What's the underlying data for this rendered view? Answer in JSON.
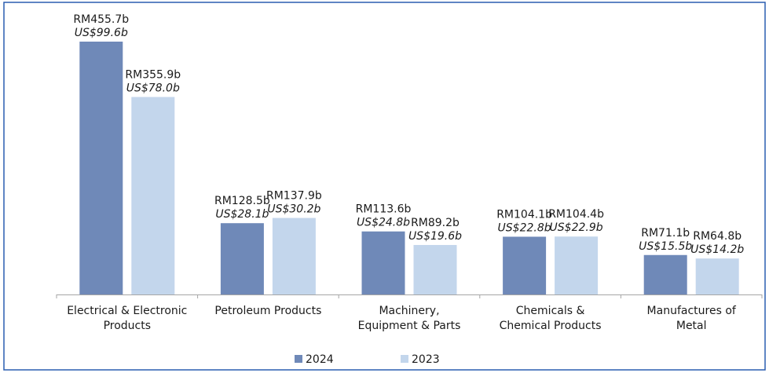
{
  "chart_data": {
    "type": "bar",
    "categories": [
      [
        "Electrical & Electronic",
        "Products"
      ],
      [
        "Petroleum Products"
      ],
      [
        "Machinery,",
        "Equipment & Parts"
      ],
      [
        "Chemicals &",
        "Chemical Products"
      ],
      [
        "Manufactures of",
        "Metal"
      ]
    ],
    "series": [
      {
        "name": "2024",
        "color": "#6f89b8",
        "values": [
          455.7,
          128.5,
          113.6,
          104.1,
          71.1
        ],
        "value_labels": [
          "RM455.7b",
          "RM128.5b",
          "RM113.6b",
          "RM104.1b",
          "RM71.1b"
        ],
        "usd_labels": [
          "US$99.6b",
          "US$28.1b",
          "US$24.8b",
          "US$22.8b",
          "US$15.5b"
        ]
      },
      {
        "name": "2023",
        "color": "#c3d6ec",
        "values": [
          355.9,
          137.9,
          89.2,
          104.4,
          64.8
        ],
        "value_labels": [
          "RM355.9b",
          "RM137.9b",
          "RM89.2b",
          "RM104.4b",
          "RM64.8b"
        ],
        "usd_labels": [
          "US$78.0b",
          "US$30.2b",
          "US$19.6b",
          "US$22.9b",
          "US$14.2b"
        ]
      }
    ],
    "legend": "bottom"
  }
}
